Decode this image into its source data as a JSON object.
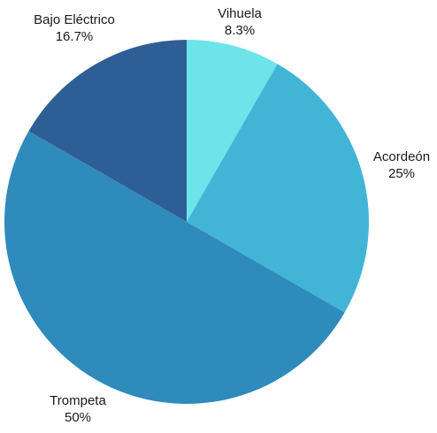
{
  "chart_data": {
    "type": "pie",
    "title": "",
    "start_angle_deg": 0,
    "direction": "clockwise",
    "slices": [
      {
        "label": "Vihuela",
        "value": 8.3,
        "percent_label": "8.3%",
        "color": "#6ce4ea"
      },
      {
        "label": "Acordeón",
        "value": 25,
        "percent_label": "25%",
        "color": "#42b5d7"
      },
      {
        "label": "Trompeta",
        "value": 50,
        "percent_label": "50%",
        "color": "#2e8bbb"
      },
      {
        "label": "Bajo Eléctrico",
        "value": 16.7,
        "percent_label": "16.7%",
        "color": "#2e5e96"
      }
    ],
    "legend": "none"
  }
}
